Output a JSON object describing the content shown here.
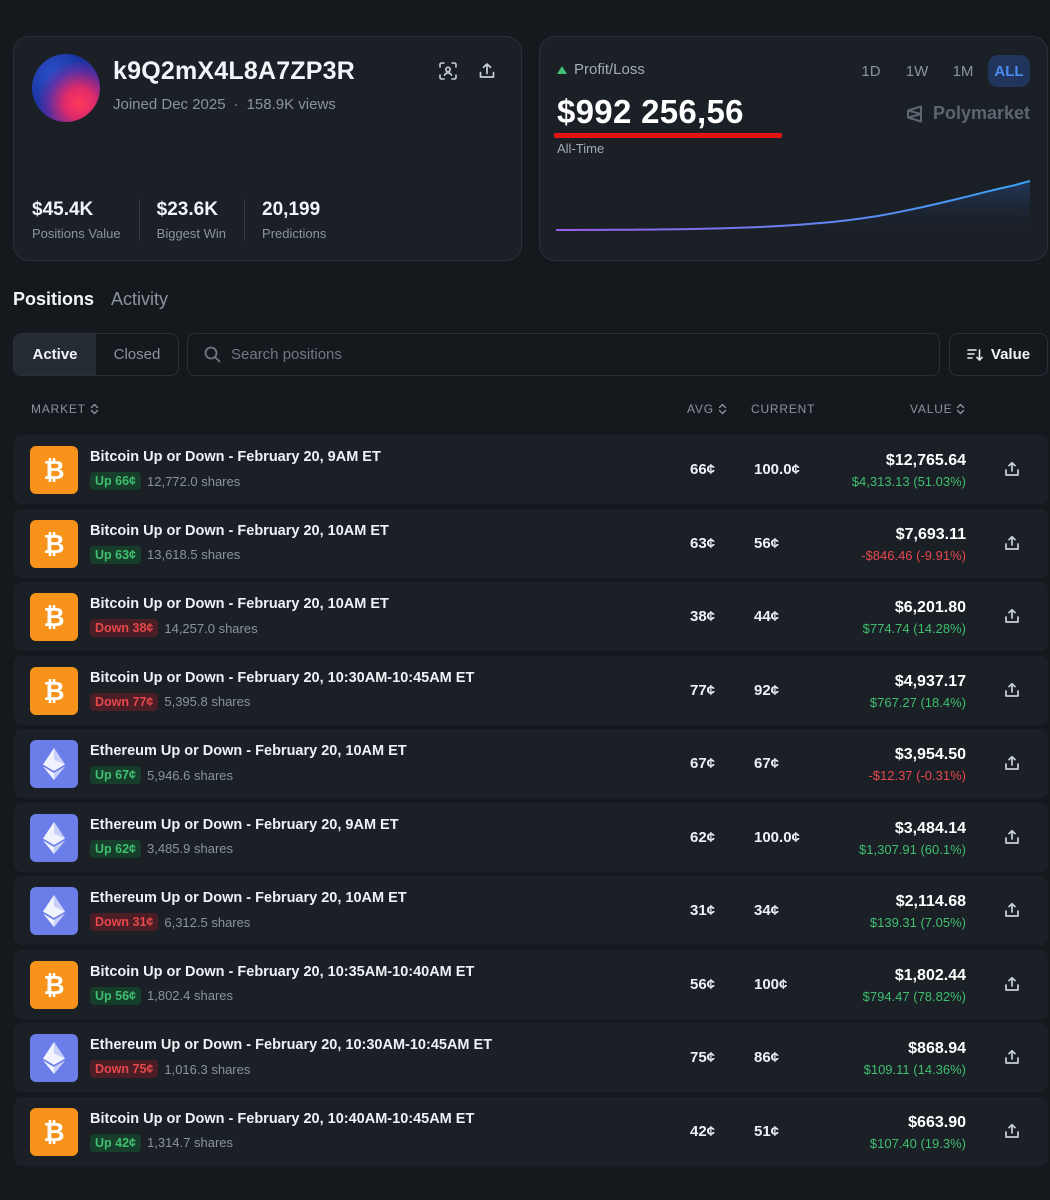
{
  "profile": {
    "username": "k9Q2mX4L8A7ZP3R",
    "joined": "Joined Dec 2025",
    "views": "158.9K views",
    "stats": [
      {
        "value": "$45.4K",
        "label": "Positions Value"
      },
      {
        "value": "$23.6K",
        "label": "Biggest Win"
      },
      {
        "value": "20,199",
        "label": "Predictions"
      }
    ]
  },
  "pnl": {
    "label": "Profit/Loss",
    "value": "$992 256,56",
    "period": "All-Time",
    "ranges": [
      "1D",
      "1W",
      "1M",
      "ALL"
    ],
    "active_range": "ALL",
    "brand": "Polymarket",
    "colors": {
      "accent": "#4a8ef0",
      "up": "#3fbf6f",
      "down": "#e5484d",
      "underline": "#e41414"
    },
    "chart_series": [
      0,
      0,
      0.2,
      0.3,
      0.5,
      0.6,
      0.8,
      1.2,
      1.6,
      2.1,
      2.8,
      3.6,
      4.6,
      5.8,
      7.2,
      9.0,
      11.0,
      13.4,
      16.2,
      19.6,
      23.6,
      28.4,
      34.0,
      40.4,
      47.0,
      54.0,
      61.5,
      69.0,
      77.0,
      84.5,
      91.5,
      100
    ]
  },
  "tabs": [
    {
      "label": "Positions",
      "active": true
    },
    {
      "label": "Activity",
      "active": false
    }
  ],
  "filters": {
    "segments": [
      {
        "label": "Active",
        "active": true
      },
      {
        "label": "Closed",
        "active": false
      }
    ],
    "search_placeholder": "Search positions",
    "sort_label": "Value"
  },
  "table": {
    "headers": {
      "market": "MARKET",
      "avg": "AVG",
      "current": "CURRENT",
      "value": "VALUE"
    },
    "rows": [
      {
        "coin": "btc",
        "title": "Bitcoin Up or Down - February 20, 9AM ET",
        "outcome": "Up 66¢",
        "side": "up",
        "shares": "12,772.0 shares",
        "avg": "66¢",
        "current": "100.0¢",
        "value": "$12,765.64",
        "pnl": "$4,313.13 (51.03%)",
        "pnl_sign": "pos"
      },
      {
        "coin": "btc",
        "title": "Bitcoin Up or Down - February 20, 10AM ET",
        "outcome": "Up 63¢",
        "side": "up",
        "shares": "13,618.5 shares",
        "avg": "63¢",
        "current": "56¢",
        "value": "$7,693.11",
        "pnl": "-$846.46 (-9.91%)",
        "pnl_sign": "neg"
      },
      {
        "coin": "btc",
        "title": "Bitcoin Up or Down - February 20, 10AM ET",
        "outcome": "Down 38¢",
        "side": "down",
        "shares": "14,257.0 shares",
        "avg": "38¢",
        "current": "44¢",
        "value": "$6,201.80",
        "pnl": "$774.74 (14.28%)",
        "pnl_sign": "pos"
      },
      {
        "coin": "btc",
        "title": "Bitcoin Up or Down - February 20, 10:30AM-10:45AM ET",
        "outcome": "Down 77¢",
        "side": "down",
        "shares": "5,395.8 shares",
        "avg": "77¢",
        "current": "92¢",
        "value": "$4,937.17",
        "pnl": "$767.27 (18.4%)",
        "pnl_sign": "pos"
      },
      {
        "coin": "eth",
        "title": "Ethereum Up or Down - February 20, 10AM ET",
        "outcome": "Up 67¢",
        "side": "up",
        "shares": "5,946.6 shares",
        "avg": "67¢",
        "current": "67¢",
        "value": "$3,954.50",
        "pnl": "-$12.37 (-0.31%)",
        "pnl_sign": "neg"
      },
      {
        "coin": "eth",
        "title": "Ethereum Up or Down - February 20, 9AM ET",
        "outcome": "Up 62¢",
        "side": "up",
        "shares": "3,485.9 shares",
        "avg": "62¢",
        "current": "100.0¢",
        "value": "$3,484.14",
        "pnl": "$1,307.91 (60.1%)",
        "pnl_sign": "pos"
      },
      {
        "coin": "eth",
        "title": "Ethereum Up or Down - February 20, 10AM ET",
        "outcome": "Down 31¢",
        "side": "down",
        "shares": "6,312.5 shares",
        "avg": "31¢",
        "current": "34¢",
        "value": "$2,114.68",
        "pnl": "$139.31 (7.05%)",
        "pnl_sign": "pos"
      },
      {
        "coin": "btc",
        "title": "Bitcoin Up or Down - February 20, 10:35AM-10:40AM ET",
        "outcome": "Up 56¢",
        "side": "up",
        "shares": "1,802.4 shares",
        "avg": "56¢",
        "current": "100¢",
        "value": "$1,802.44",
        "pnl": "$794.47 (78.82%)",
        "pnl_sign": "pos"
      },
      {
        "coin": "eth",
        "title": "Ethereum Up or Down - February 20, 10:30AM-10:45AM ET",
        "outcome": "Down 75¢",
        "side": "down",
        "shares": "1,016.3 shares",
        "avg": "75¢",
        "current": "86¢",
        "value": "$868.94",
        "pnl": "$109.11 (14.36%)",
        "pnl_sign": "pos"
      },
      {
        "coin": "btc",
        "title": "Bitcoin Up or Down - February 20, 10:40AM-10:45AM ET",
        "outcome": "Up 42¢",
        "side": "up",
        "shares": "1,314.7 shares",
        "avg": "42¢",
        "current": "51¢",
        "value": "$663.90",
        "pnl": "$107.40 (19.3%)",
        "pnl_sign": "pos"
      }
    ]
  }
}
